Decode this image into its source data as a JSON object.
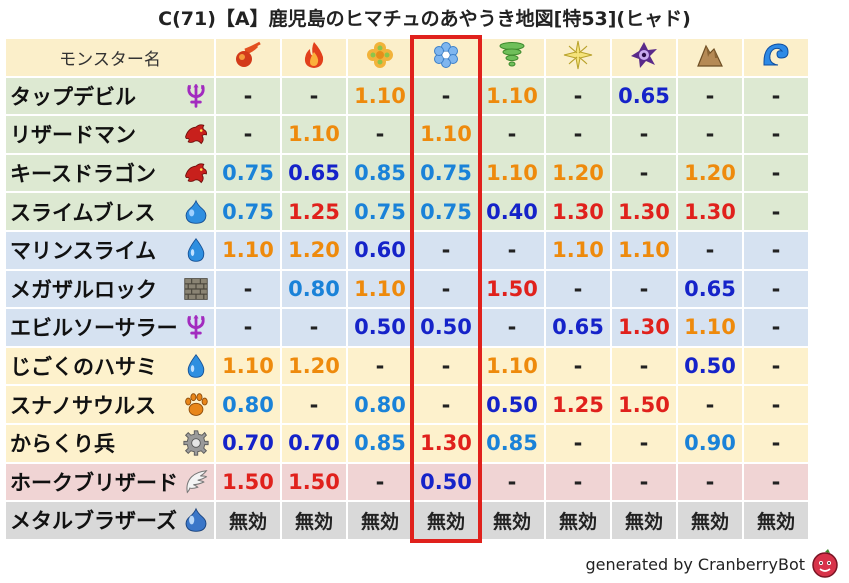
{
  "title": "C(71)【A】鹿児島のヒマチュのあやうき地図[特53](ヒャド)",
  "header": {
    "name_label": "モンスター名",
    "elements": [
      "fire-meteor",
      "flame",
      "clover",
      "ice-crystal",
      "tornado",
      "light-burst",
      "dark-vortex",
      "rock",
      "water-wave"
    ]
  },
  "rows": [
    {
      "name": "タップデビル",
      "icon": "devil-trident",
      "bg": "green",
      "values": [
        "-",
        "-",
        "1.10",
        "-",
        "1.10",
        "-",
        "0.65",
        "-",
        "-"
      ],
      "colors": [
        "none",
        "none",
        "orange",
        "none",
        "orange",
        "none",
        "navy",
        "none",
        "none"
      ]
    },
    {
      "name": "リザードマン",
      "icon": "red-dragon",
      "bg": "green",
      "values": [
        "-",
        "1.10",
        "-",
        "1.10",
        "-",
        "-",
        "-",
        "-",
        "-"
      ],
      "colors": [
        "none",
        "orange",
        "none",
        "orange",
        "none",
        "none",
        "none",
        "none",
        "none"
      ]
    },
    {
      "name": "キースドラゴン",
      "icon": "red-dragon",
      "bg": "green",
      "values": [
        "0.75",
        "0.65",
        "0.85",
        "0.75",
        "1.10",
        "1.20",
        "-",
        "1.20",
        "-"
      ],
      "colors": [
        "sky",
        "navy",
        "sky",
        "sky",
        "orange",
        "orange",
        "none",
        "orange",
        "none"
      ]
    },
    {
      "name": "スライムブレス",
      "icon": "slime",
      "bg": "green",
      "values": [
        "0.75",
        "1.25",
        "0.75",
        "0.75",
        "0.40",
        "1.30",
        "1.30",
        "1.30",
        "-"
      ],
      "colors": [
        "sky",
        "red",
        "sky",
        "sky",
        "navy",
        "red",
        "red",
        "red",
        "none"
      ]
    },
    {
      "name": "マリンスライム",
      "icon": "water-drop",
      "bg": "blue",
      "values": [
        "1.10",
        "1.20",
        "0.60",
        "-",
        "-",
        "1.10",
        "1.10",
        "-",
        "-"
      ],
      "colors": [
        "orange",
        "orange",
        "navy",
        "none",
        "none",
        "orange",
        "orange",
        "none",
        "none"
      ]
    },
    {
      "name": "メガザルロック",
      "icon": "brick-wall",
      "bg": "blue",
      "values": [
        "-",
        "0.80",
        "1.10",
        "-",
        "1.50",
        "-",
        "-",
        "0.65",
        "-"
      ],
      "colors": [
        "none",
        "sky",
        "orange",
        "none",
        "red",
        "none",
        "none",
        "navy",
        "none"
      ]
    },
    {
      "name": "エビルソーサラー",
      "icon": "devil-trident",
      "bg": "blue",
      "values": [
        "-",
        "-",
        "0.50",
        "0.50",
        "-",
        "0.65",
        "1.30",
        "1.10",
        "-"
      ],
      "colors": [
        "none",
        "none",
        "navy",
        "navy",
        "none",
        "navy",
        "red",
        "orange",
        "none"
      ]
    },
    {
      "name": "じごくのハサミ",
      "icon": "water-drop",
      "bg": "yellow",
      "values": [
        "1.10",
        "1.20",
        "-",
        "-",
        "1.10",
        "-",
        "-",
        "0.50",
        "-"
      ],
      "colors": [
        "orange",
        "orange",
        "none",
        "none",
        "orange",
        "none",
        "none",
        "navy",
        "none"
      ]
    },
    {
      "name": "スナノサウルス",
      "icon": "paw-print",
      "bg": "yellow",
      "values": [
        "0.80",
        "-",
        "0.80",
        "-",
        "0.50",
        "1.25",
        "1.50",
        "-",
        "-"
      ],
      "colors": [
        "sky",
        "none",
        "sky",
        "none",
        "navy",
        "red",
        "red",
        "none",
        "none"
      ]
    },
    {
      "name": "からくり兵",
      "icon": "gear",
      "bg": "yellow",
      "values": [
        "0.70",
        "0.70",
        "0.85",
        "1.30",
        "0.85",
        "-",
        "-",
        "0.90",
        "-"
      ],
      "colors": [
        "navy",
        "navy",
        "sky",
        "red",
        "sky",
        "none",
        "none",
        "sky",
        "none"
      ]
    },
    {
      "name": "ホークブリザード",
      "icon": "wing",
      "bg": "pink",
      "values": [
        "1.50",
        "1.50",
        "-",
        "0.50",
        "-",
        "-",
        "-",
        "-",
        "-"
      ],
      "colors": [
        "red",
        "red",
        "none",
        "navy",
        "none",
        "none",
        "none",
        "none",
        "none"
      ]
    },
    {
      "name": "メタルブラザーズ",
      "icon": "metal-slime",
      "bg": "gray",
      "values": [
        "無効",
        "無効",
        "無効",
        "無効",
        "無効",
        "無効",
        "無効",
        "無効",
        "無効"
      ],
      "colors": [
        "dark",
        "dark",
        "dark",
        "dark",
        "dark",
        "dark",
        "dark",
        "dark",
        "dark"
      ]
    }
  ],
  "highlight_column_index": 3,
  "highlight_color": "#e0211c",
  "footer": {
    "text": "generated by CranberryBot",
    "icon": "cranberry-bot-icon"
  },
  "colors": {
    "header_bg": "#fbefca",
    "green": "#dde9d2",
    "blue": "#d6e2f1",
    "yellow": "#fdf1cc",
    "pink": "#f0d4d4",
    "gray": "#d9d9d9",
    "orange": "#ee8a0c",
    "sky": "#1a82d8",
    "navy": "#1523c9",
    "red": "#e0211c"
  }
}
